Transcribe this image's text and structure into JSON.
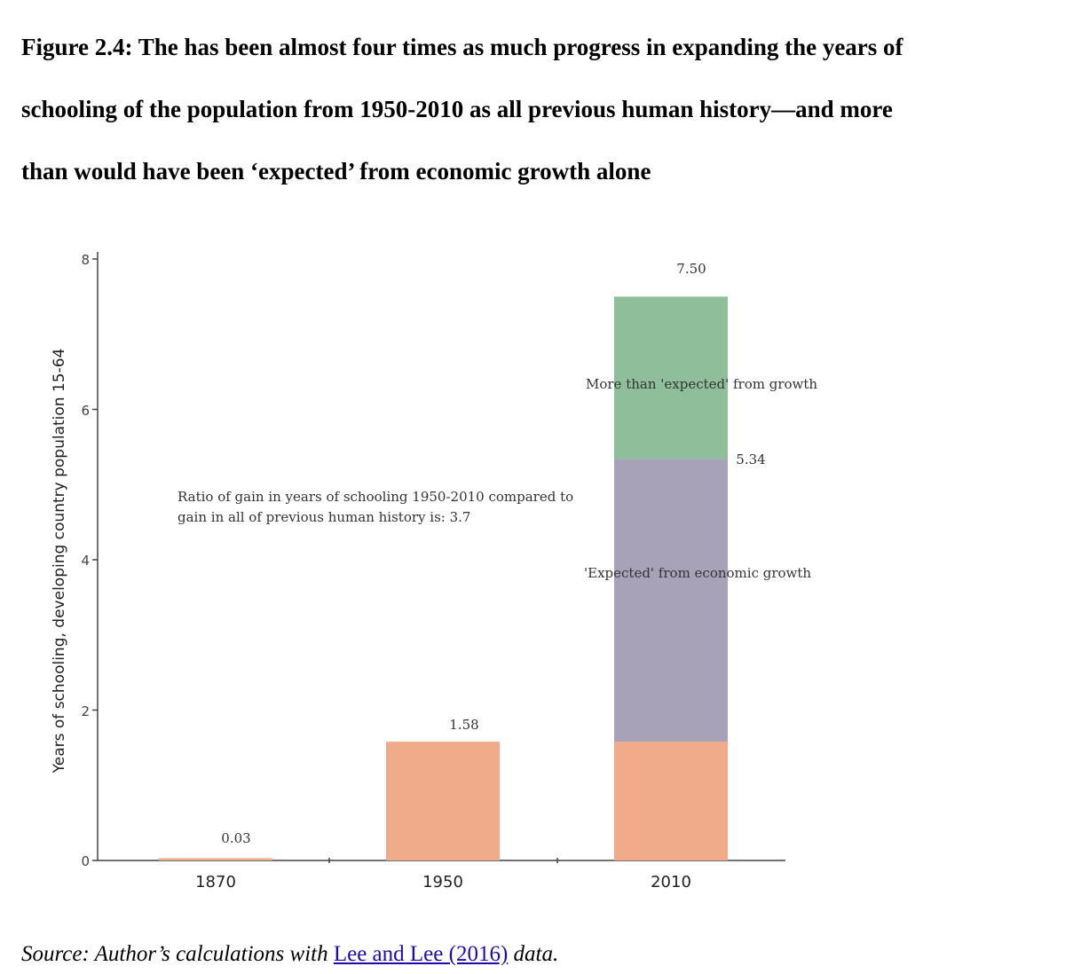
{
  "title_lines": [
    "Figure 2.4:  The has been almost four times as much progress in expanding the years of",
    "schooling of the population from 1950-2010 as all previous human history—and more",
    "than would have been ‘expected’ from economic growth alone"
  ],
  "source": {
    "prefix": "Source:  Author’s calculations with ",
    "link_text": "Lee and Lee (2016)",
    "suffix": " data."
  },
  "chart_data": {
    "type": "bar",
    "stacked": true,
    "categories": [
      "1870",
      "1950",
      "2010"
    ],
    "series": [
      {
        "values": [
          0.03,
          1.58,
          1.58
        ],
        "color": "#f0ab8a"
      },
      {
        "values": [
          0,
          0,
          3.76
        ],
        "color": "#a8a2b8"
      },
      {
        "values": [
          0,
          0,
          2.16
        ],
        "color": "#8fbf9a"
      }
    ],
    "data_labels": [
      "0.03",
      "1.58",
      "7.50",
      "5.34"
    ],
    "segment_labels": [
      "More than 'expected' from growth",
      "'Expected' from economic growth"
    ],
    "annotation": [
      "Ratio of gain in years of schooling 1950-2010 compared to",
      "gain in all of previous human history is: 3.7"
    ],
    "ylabel": "Years of schooling, developing country population 15-64",
    "xlabel": "",
    "yticks": [
      "0",
      "2",
      "4",
      "6",
      "8"
    ],
    "ylim": [
      0,
      8
    ],
    "grid": false
  }
}
